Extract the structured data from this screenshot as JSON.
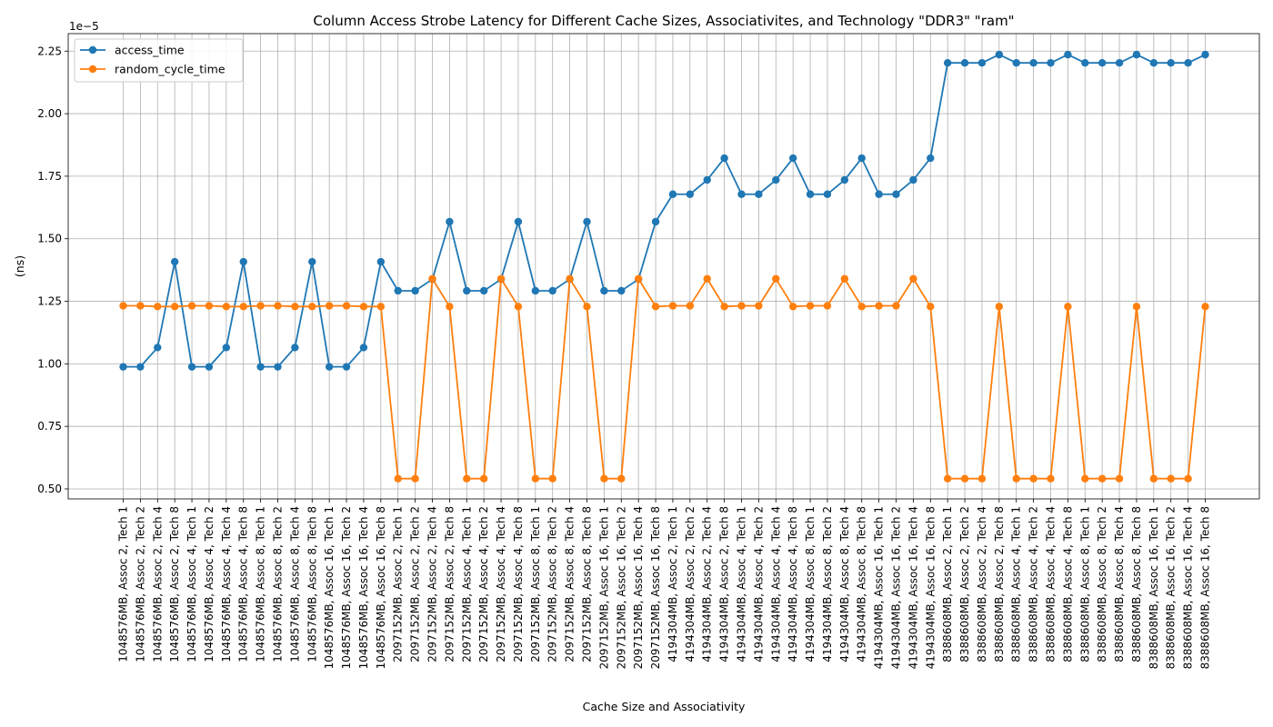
{
  "chart_data": {
    "type": "line",
    "title": "Column Access Strobe Latency for Different Cache Sizes, Associativites, and Technology \"DDR3\" \"ram\"",
    "xlabel": "Cache Size and Associativity",
    "ylabel": "(ns)",
    "y_offset_text": "1e−5",
    "ylim": [
      4.6e-06,
      2.32e-05
    ],
    "yticks": [
      5e-06,
      7.5e-06,
      1e-05,
      1.25e-05,
      1.5e-05,
      1.75e-05,
      2e-05,
      2.25e-05
    ],
    "ytick_labels": [
      "0.50",
      "0.75",
      "1.00",
      "1.25",
      "1.50",
      "1.75",
      "2.00",
      "2.25"
    ],
    "grid": true,
    "legend_position": "upper-left",
    "categories": [
      "1048576MB, Assoc 2, Tech 1",
      "1048576MB, Assoc 2, Tech 2",
      "1048576MB, Assoc 2, Tech 4",
      "1048576MB, Assoc 2, Tech 8",
      "1048576MB, Assoc 4, Tech 1",
      "1048576MB, Assoc 4, Tech 2",
      "1048576MB, Assoc 4, Tech 4",
      "1048576MB, Assoc 4, Tech 8",
      "1048576MB, Assoc 8, Tech 1",
      "1048576MB, Assoc 8, Tech 2",
      "1048576MB, Assoc 8, Tech 4",
      "1048576MB, Assoc 8, Tech 8",
      "1048576MB, Assoc 16, Tech 1",
      "1048576MB, Assoc 16, Tech 2",
      "1048576MB, Assoc 16, Tech 4",
      "1048576MB, Assoc 16, Tech 8",
      "2097152MB, Assoc 2, Tech 1",
      "2097152MB, Assoc 2, Tech 2",
      "2097152MB, Assoc 2, Tech 4",
      "2097152MB, Assoc 2, Tech 8",
      "2097152MB, Assoc 4, Tech 1",
      "2097152MB, Assoc 4, Tech 2",
      "2097152MB, Assoc 4, Tech 4",
      "2097152MB, Assoc 4, Tech 8",
      "2097152MB, Assoc 8, Tech 1",
      "2097152MB, Assoc 8, Tech 2",
      "2097152MB, Assoc 8, Tech 4",
      "2097152MB, Assoc 8, Tech 8",
      "2097152MB, Assoc 16, Tech 1",
      "2097152MB, Assoc 16, Tech 2",
      "2097152MB, Assoc 16, Tech 4",
      "2097152MB, Assoc 16, Tech 8",
      "4194304MB, Assoc 2, Tech 1",
      "4194304MB, Assoc 2, Tech 2",
      "4194304MB, Assoc 2, Tech 4",
      "4194304MB, Assoc 2, Tech 8",
      "4194304MB, Assoc 4, Tech 1",
      "4194304MB, Assoc 4, Tech 2",
      "4194304MB, Assoc 4, Tech 4",
      "4194304MB, Assoc 4, Tech 8",
      "4194304MB, Assoc 8, Tech 1",
      "4194304MB, Assoc 8, Tech 2",
      "4194304MB, Assoc 8, Tech 4",
      "4194304MB, Assoc 8, Tech 8",
      "4194304MB, Assoc 16, Tech 1",
      "4194304MB, Assoc 16, Tech 2",
      "4194304MB, Assoc 16, Tech 4",
      "4194304MB, Assoc 16, Tech 8",
      "8388608MB, Assoc 2, Tech 1",
      "8388608MB, Assoc 2, Tech 2",
      "8388608MB, Assoc 2, Tech 4",
      "8388608MB, Assoc 2, Tech 8",
      "8388608MB, Assoc 4, Tech 1",
      "8388608MB, Assoc 4, Tech 2",
      "8388608MB, Assoc 4, Tech 4",
      "8388608MB, Assoc 4, Tech 8",
      "8388608MB, Assoc 8, Tech 1",
      "8388608MB, Assoc 8, Tech 2",
      "8388608MB, Assoc 8, Tech 4",
      "8388608MB, Assoc 8, Tech 8",
      "8388608MB, Assoc 16, Tech 1",
      "8388608MB, Assoc 16, Tech 2",
      "8388608MB, Assoc 16, Tech 4",
      "8388608MB, Assoc 16, Tech 8"
    ],
    "series": [
      {
        "name": "access_time",
        "color": "#1f77b4",
        "values": [
          9.88e-06,
          9.88e-06,
          1.065e-05,
          1.408e-05,
          9.88e-06,
          9.88e-06,
          1.065e-05,
          1.408e-05,
          9.88e-06,
          9.88e-06,
          1.065e-05,
          1.408e-05,
          9.88e-06,
          9.88e-06,
          1.065e-05,
          1.408e-05,
          1.292e-05,
          1.292e-05,
          1.338e-05,
          1.568e-05,
          1.292e-05,
          1.292e-05,
          1.338e-05,
          1.568e-05,
          1.292e-05,
          1.292e-05,
          1.338e-05,
          1.568e-05,
          1.292e-05,
          1.292e-05,
          1.338e-05,
          1.568e-05,
          1.678e-05,
          1.678e-05,
          1.735e-05,
          1.822e-05,
          1.678e-05,
          1.678e-05,
          1.735e-05,
          1.822e-05,
          1.678e-05,
          1.678e-05,
          1.735e-05,
          1.822e-05,
          1.678e-05,
          1.678e-05,
          1.735e-05,
          1.822e-05,
          2.203e-05,
          2.203e-05,
          2.203e-05,
          2.236e-05,
          2.203e-05,
          2.203e-05,
          2.203e-05,
          2.236e-05,
          2.203e-05,
          2.203e-05,
          2.203e-05,
          2.236e-05,
          2.203e-05,
          2.203e-05,
          2.203e-05,
          2.236e-05
        ]
      },
      {
        "name": "random_cycle_time",
        "color": "#ff7f0e",
        "values": [
          1.232e-05,
          1.232e-05,
          1.229e-05,
          1.229e-05,
          1.232e-05,
          1.232e-05,
          1.229e-05,
          1.229e-05,
          1.232e-05,
          1.232e-05,
          1.229e-05,
          1.229e-05,
          1.232e-05,
          1.232e-05,
          1.229e-05,
          1.229e-05,
          5.41e-06,
          5.41e-06,
          1.34e-05,
          1.229e-05,
          5.41e-06,
          5.41e-06,
          1.34e-05,
          1.229e-05,
          5.41e-06,
          5.41e-06,
          1.34e-05,
          1.229e-05,
          5.41e-06,
          5.41e-06,
          1.34e-05,
          1.229e-05,
          1.232e-05,
          1.232e-05,
          1.34e-05,
          1.229e-05,
          1.232e-05,
          1.232e-05,
          1.34e-05,
          1.229e-05,
          1.232e-05,
          1.232e-05,
          1.34e-05,
          1.229e-05,
          1.232e-05,
          1.232e-05,
          1.34e-05,
          1.229e-05,
          5.41e-06,
          5.41e-06,
          5.41e-06,
          1.229e-05,
          5.41e-06,
          5.41e-06,
          5.41e-06,
          1.229e-05,
          5.41e-06,
          5.41e-06,
          5.41e-06,
          1.229e-05,
          5.41e-06,
          5.41e-06,
          5.41e-06,
          1.229e-05
        ]
      }
    ]
  }
}
